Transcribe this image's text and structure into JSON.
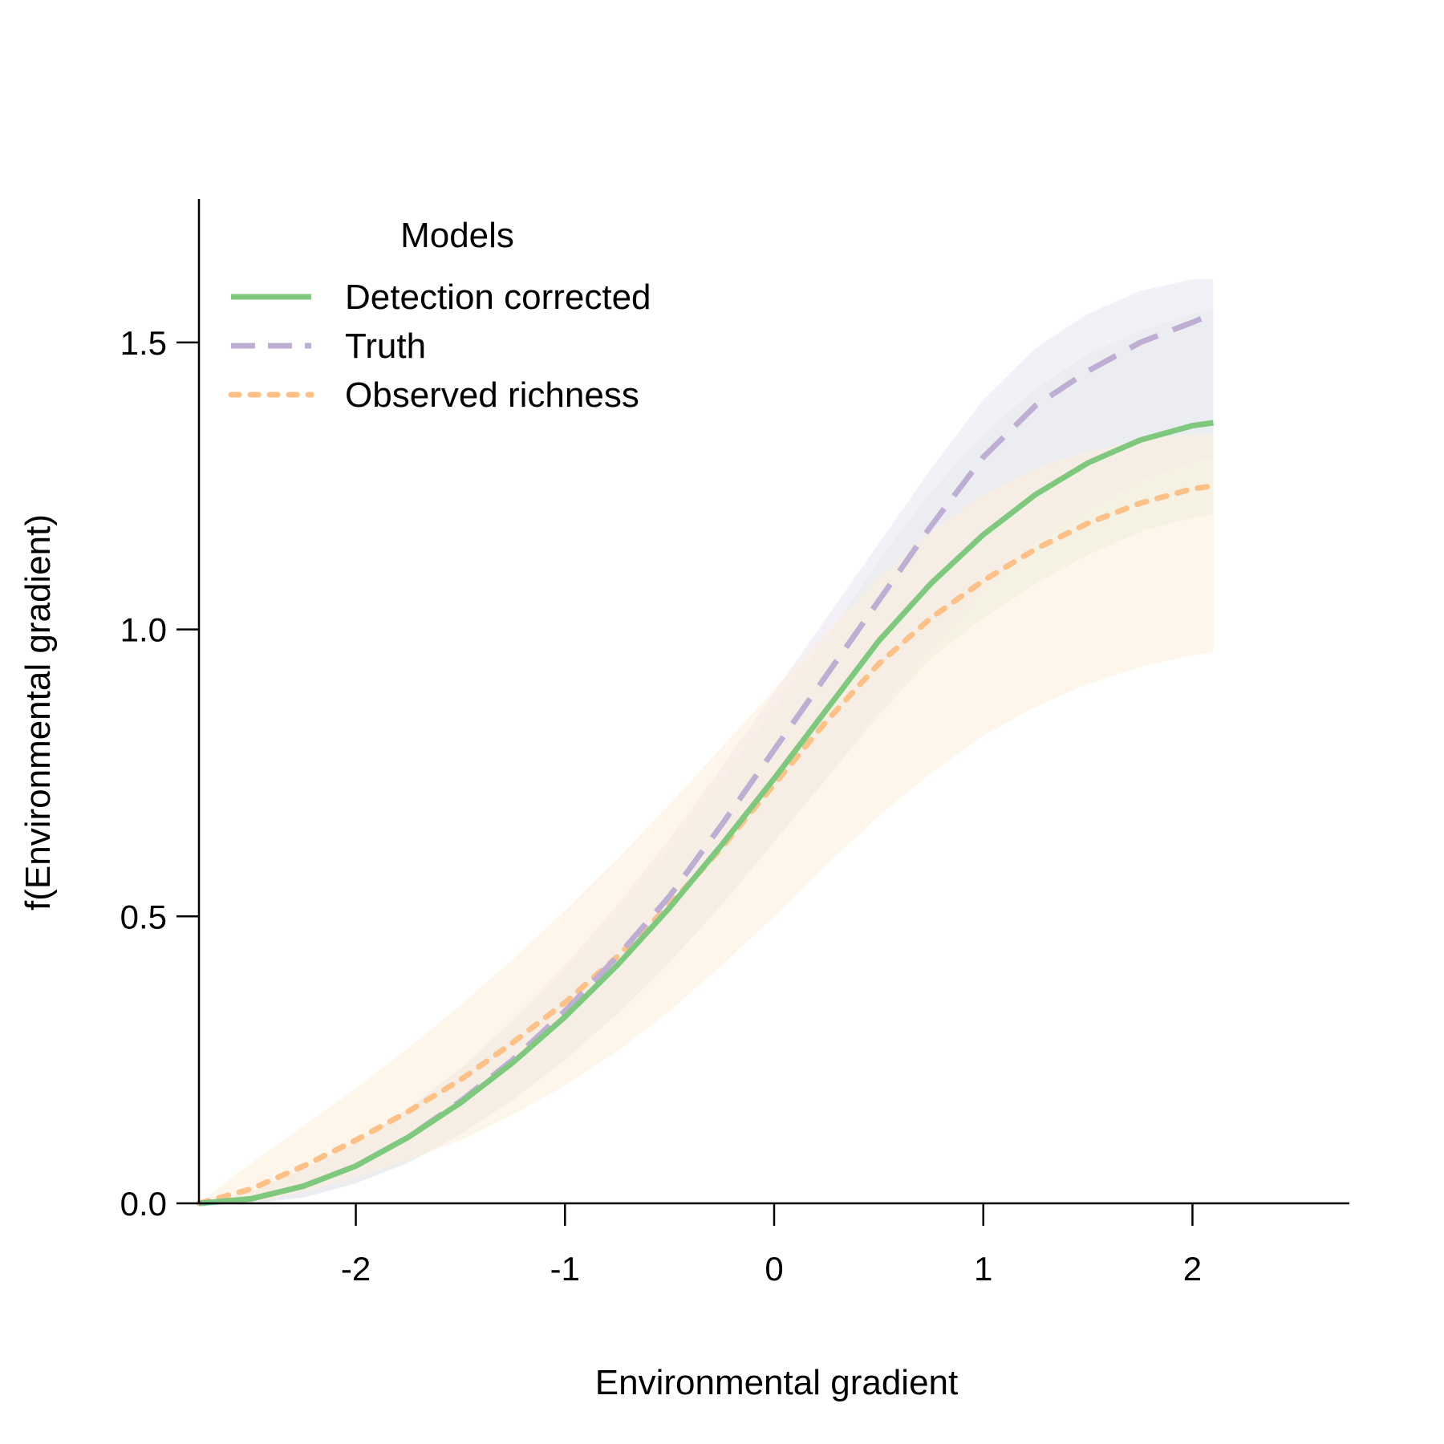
{
  "chart_data": {
    "type": "line",
    "title": "",
    "xlabel": "Environmental gradient",
    "ylabel": "f(Environmental gradient)",
    "xlim": [
      -2.75,
      2.75
    ],
    "ylim": [
      0.0,
      1.75
    ],
    "xticks": [
      "-2",
      "-1",
      "0",
      "1",
      "2"
    ],
    "xtick_values": [
      -2,
      -1,
      0,
      1,
      2
    ],
    "yticks": [
      "0.0",
      "0.5",
      "1.0",
      "1.5"
    ],
    "ytick_values": [
      0.0,
      0.5,
      1.0,
      1.5
    ],
    "grid": false,
    "legend": {
      "title": "Models",
      "placement": "top-left"
    },
    "x": [
      -2.75,
      -2.5,
      -2.25,
      -2.0,
      -1.75,
      -1.5,
      -1.25,
      -1.0,
      -0.75,
      -0.5,
      -0.25,
      0.0,
      0.25,
      0.5,
      0.75,
      1.0,
      1.25,
      1.5,
      1.75,
      2.0,
      2.1
    ],
    "series": [
      {
        "name": "Detection corrected",
        "color": "#7fc97f",
        "dash": "solid",
        "band_fill": "#dff1df",
        "values": [
          0.0,
          0.008,
          0.03,
          0.065,
          0.115,
          0.175,
          0.245,
          0.325,
          0.415,
          0.515,
          0.625,
          0.74,
          0.86,
          0.98,
          1.08,
          1.165,
          1.235,
          1.29,
          1.33,
          1.355,
          1.36
        ],
        "lower": [
          0.0,
          0.0,
          0.01,
          0.035,
          0.07,
          0.12,
          0.18,
          0.25,
          0.33,
          0.42,
          0.52,
          0.63,
          0.74,
          0.85,
          0.95,
          1.02,
          1.08,
          1.13,
          1.17,
          1.195,
          1.2
        ],
        "upper": [
          0.0,
          0.02,
          0.06,
          0.105,
          0.165,
          0.235,
          0.315,
          0.405,
          0.505,
          0.615,
          0.735,
          0.86,
          0.985,
          1.12,
          1.24,
          1.34,
          1.42,
          1.48,
          1.52,
          1.55,
          1.56
        ]
      },
      {
        "name": "Truth",
        "color": "#beaed4",
        "dash": "dashed",
        "band_fill": "#ece6f3",
        "values": [
          0.0,
          0.008,
          0.03,
          0.065,
          0.115,
          0.178,
          0.25,
          0.335,
          0.43,
          0.535,
          0.66,
          0.79,
          0.92,
          1.05,
          1.18,
          1.3,
          1.39,
          1.45,
          1.5,
          1.535,
          1.55
        ],
        "lower": [
          0.0,
          0.0,
          0.01,
          0.035,
          0.072,
          0.12,
          0.18,
          0.25,
          0.33,
          0.42,
          0.52,
          0.63,
          0.74,
          0.86,
          0.97,
          1.07,
          1.15,
          1.21,
          1.26,
          1.29,
          1.3
        ],
        "upper": [
          0.0,
          0.02,
          0.06,
          0.105,
          0.165,
          0.235,
          0.32,
          0.415,
          0.52,
          0.635,
          0.76,
          0.89,
          1.02,
          1.15,
          1.28,
          1.4,
          1.49,
          1.55,
          1.59,
          1.61,
          1.61
        ]
      },
      {
        "name": "Observed richness",
        "color": "#fdc086",
        "dash": "dotted",
        "band_fill": "#feeedd",
        "values": [
          0.0,
          0.025,
          0.065,
          0.11,
          0.16,
          0.215,
          0.28,
          0.35,
          0.43,
          0.52,
          0.62,
          0.73,
          0.84,
          0.94,
          1.02,
          1.085,
          1.14,
          1.185,
          1.22,
          1.245,
          1.25
        ],
        "lower": [
          0.0,
          0.0,
          0.02,
          0.045,
          0.075,
          0.11,
          0.155,
          0.205,
          0.265,
          0.335,
          0.415,
          0.5,
          0.59,
          0.675,
          0.75,
          0.815,
          0.865,
          0.905,
          0.935,
          0.955,
          0.96
        ],
        "upper": [
          0.0,
          0.07,
          0.135,
          0.2,
          0.27,
          0.345,
          0.425,
          0.51,
          0.6,
          0.695,
          0.795,
          0.895,
          0.995,
          1.09,
          1.17,
          1.235,
          1.28,
          1.31,
          1.33,
          1.34,
          1.34
        ]
      }
    ]
  }
}
